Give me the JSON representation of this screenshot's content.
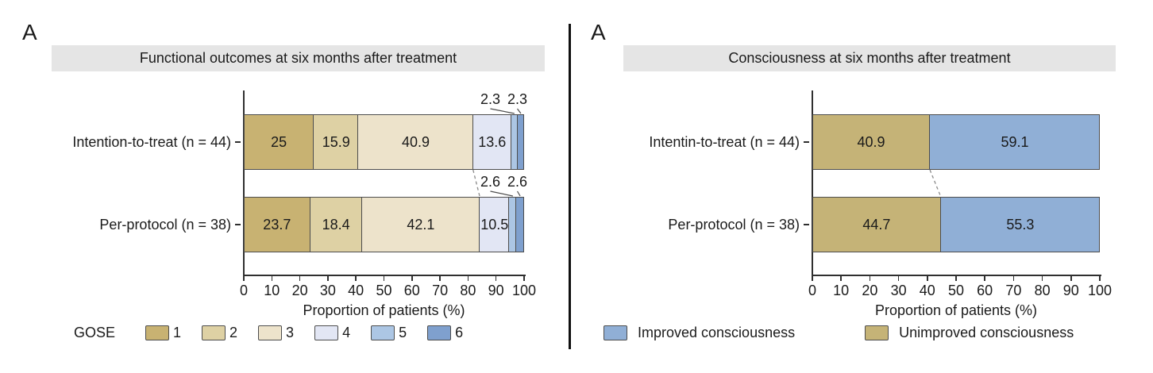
{
  "figure": {
    "divider_color": "#101010"
  },
  "chart_data": [
    {
      "type": "bar",
      "orientation": "horizontal",
      "stacked": true,
      "panel_label": "A",
      "title": "Functional outcomes at six months after treatment",
      "categories": [
        "Intention-to-treat (n = 44)",
        "Per-protocol (n = 38)"
      ],
      "series": [
        {
          "name": "1",
          "color": "#C8B272",
          "values": [
            25,
            23.7
          ]
        },
        {
          "name": "2",
          "color": "#DED1A4",
          "values": [
            15.9,
            18.4
          ]
        },
        {
          "name": "3",
          "color": "#EDE3CB",
          "values": [
            40.9,
            42.1
          ]
        },
        {
          "name": "4",
          "color": "#E2E6F4",
          "values": [
            13.6,
            10.5
          ]
        },
        {
          "name": "5",
          "color": "#ACC6E4",
          "values": [
            2.3,
            2.6
          ]
        },
        {
          "name": "6",
          "color": "#7FA0CE",
          "values": [
            2.3,
            2.6
          ]
        }
      ],
      "xlabel": "Proportion of patients (%)",
      "xlim": [
        0,
        100
      ],
      "xticks": [
        0,
        10,
        20,
        30,
        40,
        50,
        60,
        70,
        80,
        90,
        100
      ],
      "legend_title": "GOSE",
      "legend_position": "bottom",
      "legend_items": [
        {
          "label": "1",
          "color": "#C8B272"
        },
        {
          "label": "2",
          "color": "#DED1A4"
        },
        {
          "label": "3",
          "color": "#EDE3CB"
        },
        {
          "label": "4",
          "color": "#E2E6F4"
        },
        {
          "label": "5",
          "color": "#ACC6E4"
        },
        {
          "label": "6",
          "color": "#7FA0CE"
        }
      ],
      "connector_after_series": 3
    },
    {
      "type": "bar",
      "orientation": "horizontal",
      "stacked": true,
      "panel_label": "A",
      "title": "Consciousness at six months after treatment",
      "categories": [
        "Intentin-to-treat (n = 44)",
        "Per-protocol (n = 38)"
      ],
      "series": [
        {
          "name": "Unimproved consciousness",
          "color": "#C5B377",
          "values": [
            40.9,
            44.7
          ]
        },
        {
          "name": "Improved consciousness",
          "color": "#90AFD6",
          "values": [
            59.1,
            55.3
          ]
        }
      ],
      "xlabel": "Proportion of patients (%)",
      "xlim": [
        0,
        100
      ],
      "xticks": [
        0,
        10,
        20,
        30,
        40,
        50,
        60,
        70,
        80,
        90,
        100
      ],
      "legend_position": "bottom",
      "legend_items": [
        {
          "label": "Improved consciousness",
          "color": "#90AFD6"
        },
        {
          "label": "Unimproved consciousness",
          "color": "#C5B377"
        }
      ],
      "connector_after_series": 1
    }
  ]
}
